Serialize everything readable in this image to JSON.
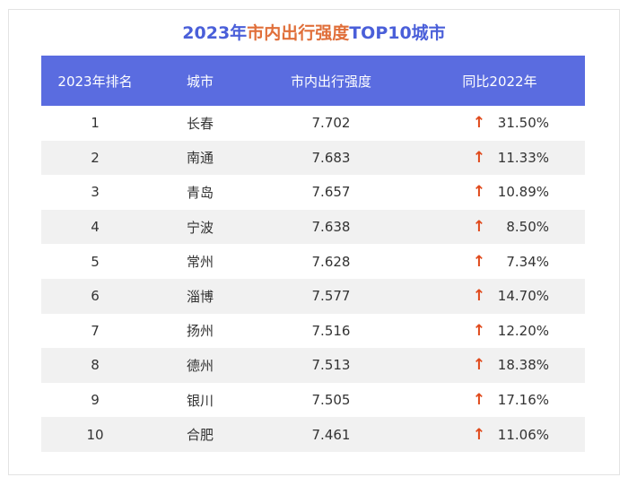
{
  "title": {
    "year": "2023年",
    "middle": "市内出行强度",
    "end": "TOP10城市"
  },
  "header": {
    "rank": "2023年排名",
    "city": "城市",
    "intensity": "市内出行强度",
    "yoy": "同比2022年"
  },
  "colors": {
    "header_bg": "#5a6ce0",
    "title_blue": "#4a5fd9",
    "title_orange": "#e06f3a",
    "up_arrow": "#e0491b",
    "alt_row": "#f1f1f1"
  },
  "icons": {
    "trend": "arrow-up-icon"
  },
  "arrow_glyph": "↑",
  "rows": [
    {
      "rank": "1",
      "city": "长春",
      "intensity": "7.702",
      "yoy": "31.50%"
    },
    {
      "rank": "2",
      "city": "南通",
      "intensity": "7.683",
      "yoy": "11.33%"
    },
    {
      "rank": "3",
      "city": "青岛",
      "intensity": "7.657",
      "yoy": "10.89%"
    },
    {
      "rank": "4",
      "city": "宁波",
      "intensity": "7.638",
      "yoy": "8.50%"
    },
    {
      "rank": "5",
      "city": "常州",
      "intensity": "7.628",
      "yoy": "7.34%"
    },
    {
      "rank": "6",
      "city": "淄博",
      "intensity": "7.577",
      "yoy": "14.70%"
    },
    {
      "rank": "7",
      "city": "扬州",
      "intensity": "7.516",
      "yoy": "12.20%"
    },
    {
      "rank": "8",
      "city": "德州",
      "intensity": "7.513",
      "yoy": "18.38%"
    },
    {
      "rank": "9",
      "city": "银川",
      "intensity": "7.505",
      "yoy": "17.16%"
    },
    {
      "rank": "10",
      "city": "合肥",
      "intensity": "7.461",
      "yoy": "11.06%"
    }
  ],
  "chart_data": {
    "type": "table",
    "title": "2023年市内出行强度TOP10城市",
    "columns": [
      "2023年排名",
      "城市",
      "市内出行强度",
      "同比2022年"
    ],
    "categories": [
      "长春",
      "南通",
      "青岛",
      "宁波",
      "常州",
      "淄博",
      "扬州",
      "德州",
      "银川",
      "合肥"
    ],
    "series": [
      {
        "name": "市内出行强度",
        "values": [
          7.702,
          7.683,
          7.657,
          7.638,
          7.628,
          7.577,
          7.516,
          7.513,
          7.505,
          7.461
        ]
      },
      {
        "name": "同比2022年",
        "values": [
          31.5,
          11.33,
          10.89,
          8.5,
          7.34,
          14.7,
          12.2,
          18.38,
          17.16,
          11.06
        ]
      }
    ]
  }
}
